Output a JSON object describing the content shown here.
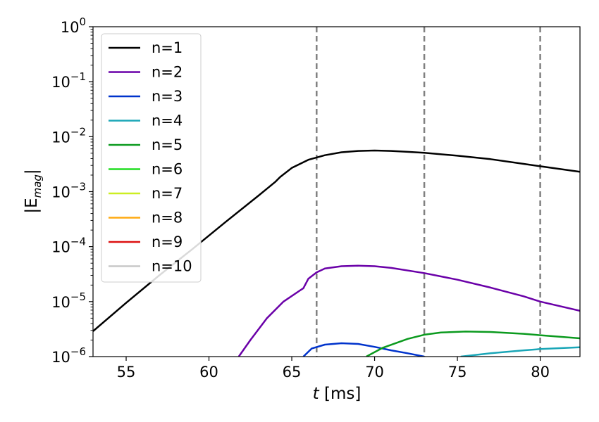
{
  "chart_data": {
    "type": "line",
    "title": "",
    "xlabel": {
      "var": "t",
      "unit": " [ms]"
    },
    "ylabel": {
      "base": "|E",
      "sub": "mag",
      "close": "|"
    },
    "xlim": [
      53,
      82.4
    ],
    "ylim": [
      1e-06,
      1
    ],
    "yscale": "log",
    "x_ticks": [
      55,
      60,
      65,
      70,
      75,
      80
    ],
    "y_ticks": [
      {
        "value": 1e-06,
        "base": "10",
        "exp": "−6"
      },
      {
        "value": 1e-05,
        "base": "10",
        "exp": "−5"
      },
      {
        "value": 0.0001,
        "base": "10",
        "exp": "−4"
      },
      {
        "value": 0.001,
        "base": "10",
        "exp": "−3"
      },
      {
        "value": 0.01,
        "base": "10",
        "exp": "−2"
      },
      {
        "value": 0.1,
        "base": "10",
        "exp": "−1"
      },
      {
        "value": 1,
        "base": "10",
        "exp": "0"
      }
    ],
    "vlines": [
      66.5,
      73,
      80
    ],
    "vline_color": "#808080",
    "legend_position": "upper-left",
    "series": [
      {
        "name": "n=1",
        "color": "#000000",
        "points": [
          [
            53,
            2.9e-06
          ],
          [
            55,
            9.5e-06
          ],
          [
            57,
            3e-05
          ],
          [
            59,
            9e-05
          ],
          [
            61,
            0.00028
          ],
          [
            63,
            0.00085
          ],
          [
            64,
            0.0015
          ],
          [
            64.3,
            0.00185
          ],
          [
            65,
            0.0027
          ],
          [
            66,
            0.0038
          ],
          [
            67,
            0.0046
          ],
          [
            68,
            0.0052
          ],
          [
            69,
            0.0055
          ],
          [
            70,
            0.0056
          ],
          [
            71,
            0.0055
          ],
          [
            72,
            0.0053
          ],
          [
            73,
            0.0051
          ],
          [
            75,
            0.0045
          ],
          [
            77,
            0.0039
          ],
          [
            79,
            0.0032
          ],
          [
            80,
            0.0029
          ],
          [
            82.4,
            0.0023
          ]
        ]
      },
      {
        "name": "n=2",
        "color": "#6a00a8",
        "points": [
          [
            61.8,
            1e-06
          ],
          [
            62.5,
            2e-06
          ],
          [
            63.5,
            5e-06
          ],
          [
            64.5,
            1e-05
          ],
          [
            65.5,
            1.6e-05
          ],
          [
            65.7,
            1.75e-05
          ],
          [
            66,
            2.6e-05
          ],
          [
            66.5,
            3.4e-05
          ],
          [
            67,
            4e-05
          ],
          [
            68,
            4.4e-05
          ],
          [
            69,
            4.5e-05
          ],
          [
            70,
            4.4e-05
          ],
          [
            71,
            4.1e-05
          ],
          [
            73,
            3.3e-05
          ],
          [
            75,
            2.5e-05
          ],
          [
            77,
            1.8e-05
          ],
          [
            79,
            1.25e-05
          ],
          [
            80,
            1e-05
          ],
          [
            82.4,
            6.8e-06
          ]
        ]
      },
      {
        "name": "n=3",
        "color": "#0033cc",
        "points": [
          [
            65.7,
            1e-06
          ],
          [
            66.2,
            1.4e-06
          ],
          [
            67,
            1.65e-06
          ],
          [
            68,
            1.75e-06
          ],
          [
            69,
            1.7e-06
          ],
          [
            70,
            1.5e-06
          ],
          [
            71,
            1.3e-06
          ],
          [
            72,
            1.15e-06
          ],
          [
            73,
            1e-06
          ]
        ]
      },
      {
        "name": "n=4",
        "color": "#1aa6b7",
        "points": [
          [
            75.2,
            1e-06
          ],
          [
            77,
            1.15e-06
          ],
          [
            79,
            1.3e-06
          ],
          [
            80,
            1.37e-06
          ],
          [
            82.4,
            1.48e-06
          ]
        ]
      },
      {
        "name": "n=5",
        "color": "#0b9a1e",
        "points": [
          [
            69.5,
            1e-06
          ],
          [
            70.5,
            1.45e-06
          ],
          [
            72,
            2.1e-06
          ],
          [
            73,
            2.5e-06
          ],
          [
            74,
            2.75e-06
          ],
          [
            75.5,
            2.85e-06
          ],
          [
            77,
            2.8e-06
          ],
          [
            79,
            2.6e-06
          ],
          [
            80,
            2.45e-06
          ],
          [
            82.4,
            2.15e-06
          ]
        ]
      },
      {
        "name": "n=6",
        "color": "#22dd22",
        "points": []
      },
      {
        "name": "n=7",
        "color": "#ccee22",
        "points": []
      },
      {
        "name": "n=8",
        "color": "#ffaa11",
        "points": []
      },
      {
        "name": "n=9",
        "color": "#dd1111",
        "points": []
      },
      {
        "name": "n=10",
        "color": "#c8c8c8",
        "points": []
      }
    ]
  }
}
